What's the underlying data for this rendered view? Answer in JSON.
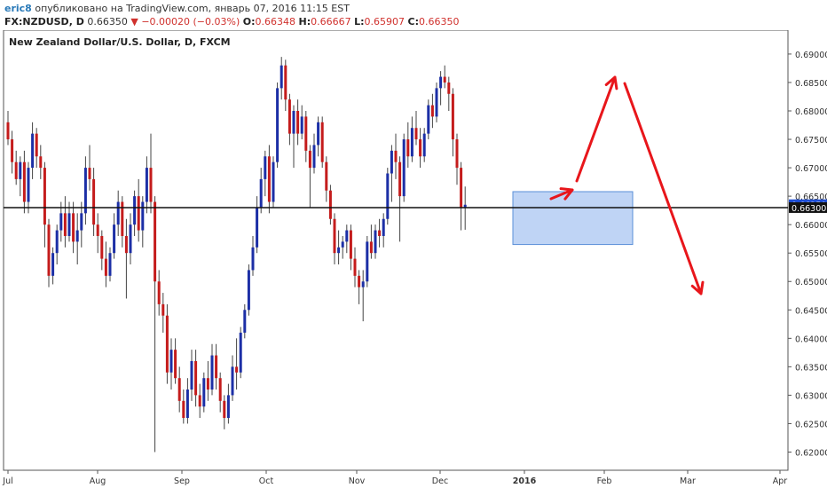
{
  "header": {
    "author": "eric8",
    "published": "опубликовано на TradingView.com, январь 07, 2016 11:15 EST",
    "symbol": "FX:NZDUSD, D",
    "last": "0.66350",
    "change_arrow": "▼",
    "change": "−0.00020 (−0.03%)",
    "open_label": "O:",
    "open": "0.66348",
    "high_label": "H:",
    "high": "0.66667",
    "low_label": "L:",
    "low": "0.65907",
    "close_label": "C:",
    "close": "0.66350"
  },
  "chart_data": {
    "type": "candlestick",
    "title": "New Zealand Dollar/U.S. Dollar, D, FXCM",
    "xlabels": [
      "Jul",
      "Aug",
      "Sep",
      "Oct",
      "Nov",
      "Dec",
      "2016",
      "Feb",
      "Mar",
      "Apr"
    ],
    "yticks": [
      "0.69000",
      "0.68500",
      "0.68000",
      "0.67500",
      "0.67000",
      "0.66500",
      "0.66000",
      "0.65500",
      "0.65000",
      "0.64500",
      "0.64000",
      "0.63500",
      "0.63000",
      "0.62500",
      "0.62000"
    ],
    "ylim": [
      0.6168,
      0.6942
    ],
    "price_tag": "0.66350",
    "level_tag": "0.66300",
    "horizontal_level": 0.663,
    "zone": {
      "top": 0.6658,
      "bottom": 0.6565
    },
    "colors": {
      "up": "#1c2fa6",
      "down": "#c41c1c",
      "zone": "#a9c6f2",
      "zone_border": "#5a8fd8",
      "arrow": "#e8161b",
      "price_tag": "#1f4fd6"
    },
    "candles": [
      [
        0.678,
        0.68,
        0.674,
        0.675
      ],
      [
        0.675,
        0.6765,
        0.669,
        0.671
      ],
      [
        0.671,
        0.673,
        0.667,
        0.668
      ],
      [
        0.668,
        0.672,
        0.665,
        0.671
      ],
      [
        0.671,
        0.673,
        0.662,
        0.664
      ],
      [
        0.664,
        0.671,
        0.662,
        0.67
      ],
      [
        0.67,
        0.678,
        0.668,
        0.676
      ],
      [
        0.676,
        0.677,
        0.67,
        0.672
      ],
      [
        0.672,
        0.674,
        0.668,
        0.67
      ],
      [
        0.67,
        0.671,
        0.656,
        0.66
      ],
      [
        0.66,
        0.661,
        0.649,
        0.651
      ],
      [
        0.651,
        0.656,
        0.6495,
        0.655
      ],
      [
        0.655,
        0.66,
        0.653,
        0.659
      ],
      [
        0.659,
        0.664,
        0.657,
        0.662
      ],
      [
        0.662,
        0.665,
        0.656,
        0.658
      ],
      [
        0.658,
        0.664,
        0.657,
        0.662
      ],
      [
        0.662,
        0.664,
        0.655,
        0.657
      ],
      [
        0.657,
        0.662,
        0.653,
        0.659
      ],
      [
        0.659,
        0.664,
        0.656,
        0.662
      ],
      [
        0.662,
        0.672,
        0.66,
        0.67
      ],
      [
        0.67,
        0.674,
        0.666,
        0.668
      ],
      [
        0.668,
        0.67,
        0.658,
        0.66
      ],
      [
        0.66,
        0.662,
        0.655,
        0.658
      ],
      [
        0.658,
        0.659,
        0.652,
        0.654
      ],
      [
        0.654,
        0.657,
        0.649,
        0.651
      ],
      [
        0.651,
        0.656,
        0.65,
        0.655
      ],
      [
        0.655,
        0.662,
        0.654,
        0.66
      ],
      [
        0.66,
        0.666,
        0.658,
        0.664
      ],
      [
        0.664,
        0.665,
        0.656,
        0.658
      ],
      [
        0.658,
        0.661,
        0.647,
        0.655
      ],
      [
        0.655,
        0.662,
        0.653,
        0.66
      ],
      [
        0.66,
        0.666,
        0.658,
        0.665
      ],
      [
        0.665,
        0.668,
        0.657,
        0.659
      ],
      [
        0.659,
        0.665,
        0.656,
        0.664
      ],
      [
        0.664,
        0.672,
        0.662,
        0.67
      ],
      [
        0.67,
        0.676,
        0.662,
        0.664
      ],
      [
        0.664,
        0.665,
        0.62,
        0.65
      ],
      [
        0.65,
        0.652,
        0.644,
        0.646
      ],
      [
        0.646,
        0.648,
        0.641,
        0.644
      ],
      [
        0.644,
        0.646,
        0.632,
        0.634
      ],
      [
        0.634,
        0.64,
        0.631,
        0.638
      ],
      [
        0.638,
        0.64,
        0.632,
        0.633
      ],
      [
        0.633,
        0.635,
        0.627,
        0.629
      ],
      [
        0.629,
        0.631,
        0.625,
        0.626
      ],
      [
        0.626,
        0.633,
        0.625,
        0.631
      ],
      [
        0.631,
        0.638,
        0.629,
        0.636
      ],
      [
        0.636,
        0.638,
        0.628,
        0.63
      ],
      [
        0.63,
        0.632,
        0.626,
        0.628
      ],
      [
        0.628,
        0.634,
        0.627,
        0.633
      ],
      [
        0.633,
        0.636,
        0.629,
        0.631
      ],
      [
        0.631,
        0.639,
        0.63,
        0.637
      ],
      [
        0.637,
        0.639,
        0.631,
        0.633
      ],
      [
        0.633,
        0.634,
        0.627,
        0.629
      ],
      [
        0.629,
        0.63,
        0.624,
        0.626
      ],
      [
        0.626,
        0.632,
        0.625,
        0.63
      ],
      [
        0.63,
        0.637,
        0.629,
        0.635
      ],
      [
        0.635,
        0.64,
        0.631,
        0.634
      ],
      [
        0.634,
        0.642,
        0.633,
        0.641
      ],
      [
        0.641,
        0.646,
        0.64,
        0.645
      ],
      [
        0.645,
        0.653,
        0.644,
        0.652
      ],
      [
        0.652,
        0.658,
        0.651,
        0.656
      ],
      [
        0.656,
        0.665,
        0.655,
        0.663
      ],
      [
        0.663,
        0.67,
        0.662,
        0.668
      ],
      [
        0.668,
        0.673,
        0.665,
        0.672
      ],
      [
        0.672,
        0.674,
        0.662,
        0.664
      ],
      [
        0.664,
        0.672,
        0.663,
        0.671
      ],
      [
        0.671,
        0.685,
        0.67,
        0.684
      ],
      [
        0.684,
        0.6895,
        0.682,
        0.688
      ],
      [
        0.688,
        0.689,
        0.68,
        0.682
      ],
      [
        0.682,
        0.683,
        0.674,
        0.676
      ],
      [
        0.676,
        0.681,
        0.67,
        0.68
      ],
      [
        0.68,
        0.682,
        0.674,
        0.676
      ],
      [
        0.676,
        0.681,
        0.675,
        0.679
      ],
      [
        0.679,
        0.68,
        0.671,
        0.673
      ],
      [
        0.673,
        0.674,
        0.663,
        0.67
      ],
      [
        0.67,
        0.676,
        0.669,
        0.674
      ],
      [
        0.674,
        0.679,
        0.672,
        0.678
      ],
      [
        0.678,
        0.679,
        0.67,
        0.671
      ],
      [
        0.671,
        0.672,
        0.664,
        0.666
      ],
      [
        0.666,
        0.667,
        0.66,
        0.661
      ],
      [
        0.661,
        0.662,
        0.653,
        0.655
      ],
      [
        0.655,
        0.659,
        0.653,
        0.656
      ],
      [
        0.656,
        0.658,
        0.654,
        0.657
      ],
      [
        0.657,
        0.66,
        0.655,
        0.659
      ],
      [
        0.659,
        0.66,
        0.652,
        0.654
      ],
      [
        0.654,
        0.656,
        0.649,
        0.651
      ],
      [
        0.651,
        0.652,
        0.646,
        0.649
      ],
      [
        0.649,
        0.652,
        0.643,
        0.65
      ],
      [
        0.65,
        0.658,
        0.649,
        0.657
      ],
      [
        0.657,
        0.66,
        0.654,
        0.655
      ],
      [
        0.655,
        0.66,
        0.654,
        0.659
      ],
      [
        0.659,
        0.661,
        0.656,
        0.658
      ],
      [
        0.658,
        0.662,
        0.656,
        0.661
      ],
      [
        0.661,
        0.67,
        0.66,
        0.669
      ],
      [
        0.669,
        0.674,
        0.664,
        0.673
      ],
      [
        0.673,
        0.676,
        0.668,
        0.671
      ],
      [
        0.671,
        0.672,
        0.657,
        0.665
      ],
      [
        0.665,
        0.676,
        0.664,
        0.675
      ],
      [
        0.675,
        0.678,
        0.67,
        0.672
      ],
      [
        0.672,
        0.679,
        0.671,
        0.677
      ],
      [
        0.677,
        0.68,
        0.674,
        0.675
      ],
      [
        0.675,
        0.677,
        0.67,
        0.672
      ],
      [
        0.672,
        0.677,
        0.671,
        0.676
      ],
      [
        0.676,
        0.682,
        0.675,
        0.681
      ],
      [
        0.681,
        0.683,
        0.677,
        0.679
      ],
      [
        0.679,
        0.685,
        0.678,
        0.684
      ],
      [
        0.684,
        0.687,
        0.681,
        0.686
      ],
      [
        0.686,
        0.688,
        0.684,
        0.685
      ],
      [
        0.685,
        0.686,
        0.68,
        0.683
      ],
      [
        0.683,
        0.684,
        0.672,
        0.675
      ],
      [
        0.675,
        0.676,
        0.667,
        0.67
      ],
      [
        0.67,
        0.671,
        0.659,
        0.663
      ],
      [
        0.663,
        0.6667,
        0.6591,
        0.6635
      ]
    ]
  }
}
